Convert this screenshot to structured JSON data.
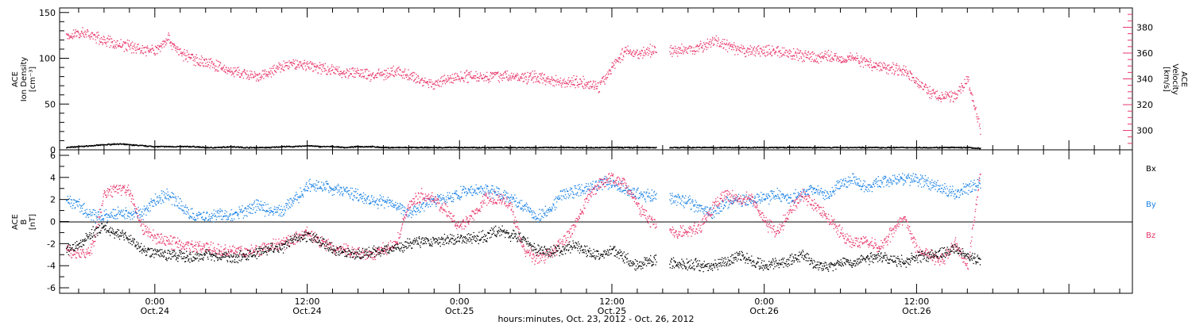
{
  "xlabel": "hours:minutes, Oct. 23, 2012 - Oct. 26, 2012",
  "x_ticks": [
    {
      "time": "0:00",
      "date": "Oct.24",
      "hour": 0
    },
    {
      "time": "12:00",
      "date": "Oct.24",
      "hour": 12
    },
    {
      "time": "0:00",
      "date": "Oct.25",
      "hour": 24
    },
    {
      "time": "12:00",
      "date": "Oct.25",
      "hour": 36
    },
    {
      "time": "0:00",
      "date": "Oct.26",
      "hour": 48
    },
    {
      "time": "12:00",
      "date": "Oct.26",
      "hour": 60
    }
  ],
  "colors": {
    "density": "#000000",
    "velocity": "#e8366a",
    "bx": "#000000",
    "by": "#1a82e6",
    "bz": "#e8366a"
  },
  "chart_data": [
    {
      "type": "scatter",
      "panel": "top",
      "x_range_hours": [
        -7.5,
        77
      ],
      "y_left": {
        "label_lines": [
          "ACE",
          "Ion Density",
          "[cm⁻³]"
        ],
        "ylim": [
          0,
          155
        ],
        "ticks": [
          0,
          50,
          100,
          150
        ]
      },
      "y_right": {
        "label_lines": [
          "ACE",
          "Velocity",
          "[km/s]"
        ],
        "ylim": [
          285,
          395
        ],
        "ticks": [
          300,
          320,
          340,
          360,
          380
        ]
      },
      "series": [
        {
          "name": "",
          "axis": "left",
          "x": [
            -7,
            -6,
            -5,
            -4,
            -3,
            -2,
            -1,
            0,
            1,
            2,
            3,
            4,
            5,
            6,
            7,
            8,
            9,
            10,
            11,
            12,
            13,
            14,
            15,
            16,
            17,
            18,
            19,
            20,
            21,
            22,
            23,
            24,
            25,
            26,
            27,
            28,
            29,
            30,
            31,
            32,
            33,
            34,
            35,
            36,
            37,
            38,
            39,
            40,
            41,
            42,
            43,
            44,
            45,
            46,
            47,
            48,
            49,
            50,
            51,
            52,
            53,
            54,
            55,
            56,
            57,
            58,
            59,
            60,
            61,
            62,
            63,
            64,
            65
          ],
          "y": [
            3,
            4,
            5,
            6,
            7,
            6,
            5,
            4,
            4,
            4,
            4,
            3,
            3,
            4,
            3,
            3,
            3,
            4,
            4,
            5,
            4,
            4,
            3,
            4,
            4,
            3,
            3,
            3,
            3,
            3,
            3,
            3,
            3,
            3,
            3,
            3,
            3,
            3,
            3,
            3,
            3,
            3,
            3,
            3,
            3,
            3,
            3,
            3,
            3,
            3,
            3,
            3,
            3,
            3,
            3,
            3,
            3,
            3,
            3,
            3,
            3,
            3,
            3,
            3,
            3,
            3,
            3,
            3,
            3,
            3,
            3,
            3,
            2
          ]
        },
        {
          "name": "",
          "axis": "right",
          "x": [
            -7,
            -6,
            -5,
            -4,
            -3,
            -2,
            -1,
            0,
            1,
            2,
            3,
            4,
            5,
            6,
            7,
            8,
            9,
            10,
            11,
            12,
            13,
            14,
            15,
            16,
            17,
            18,
            19,
            20,
            21,
            22,
            23,
            24,
            25,
            26,
            27,
            28,
            29,
            30,
            31,
            32,
            33,
            34,
            35,
            36,
            37,
            38,
            39,
            40,
            41,
            42,
            43,
            44,
            45,
            46,
            47,
            48,
            49,
            50,
            51,
            52,
            53,
            54,
            55,
            56,
            57,
            58,
            59,
            60,
            61,
            62,
            63,
            64,
            65
          ],
          "y": [
            373,
            376,
            374,
            370,
            367,
            366,
            363,
            362,
            372,
            360,
            356,
            353,
            350,
            346,
            344,
            341,
            345,
            350,
            352,
            351,
            349,
            347,
            345,
            345,
            343,
            344,
            346,
            343,
            339,
            336,
            340,
            342,
            343,
            342,
            343,
            342,
            341,
            342,
            340,
            338,
            338,
            337,
            334,
            350,
            362,
            360,
            362,
            363,
            362,
            363,
            365,
            370,
            366,
            362,
            362,
            362,
            362,
            360,
            358,
            357,
            358,
            356,
            357,
            353,
            350,
            349,
            347,
            338,
            330,
            326,
            327,
            340,
            300
          ]
        }
      ]
    },
    {
      "type": "scatter",
      "panel": "bottom",
      "x_range_hours": [
        -7.5,
        77
      ],
      "y_left": {
        "label_lines": [
          "ACE",
          "B",
          "[nT]"
        ],
        "ylim": [
          -6.5,
          6.5
        ],
        "ticks": [
          -6,
          -4,
          -2,
          0,
          2,
          4,
          6
        ]
      },
      "legend_placement": "right",
      "series": [
        {
          "name": "Bx",
          "x": [
            -7,
            -6,
            -5,
            -4,
            -3,
            -2,
            -1,
            0,
            1,
            2,
            3,
            4,
            5,
            6,
            7,
            8,
            9,
            10,
            11,
            12,
            13,
            14,
            15,
            16,
            17,
            18,
            19,
            20,
            21,
            22,
            23,
            24,
            25,
            26,
            27,
            28,
            29,
            30,
            31,
            32,
            33,
            34,
            35,
            36,
            37,
            38,
            39,
            40,
            41,
            42,
            43,
            44,
            45,
            46,
            47,
            48,
            49,
            50,
            51,
            52,
            53,
            54,
            55,
            56,
            57,
            58,
            59,
            60,
            61,
            62,
            63,
            64,
            65
          ],
          "y": [
            -2.5,
            -2.0,
            -1.0,
            -0.5,
            -1.0,
            -1.5,
            -2.5,
            -2.8,
            -3.0,
            -3.0,
            -3.2,
            -3.0,
            -3.1,
            -3.3,
            -3.0,
            -2.8,
            -2.5,
            -2.3,
            -1.5,
            -1.2,
            -1.8,
            -2.5,
            -2.8,
            -3.0,
            -2.7,
            -2.5,
            -2.3,
            -2.0,
            -1.8,
            -1.7,
            -1.6,
            -1.5,
            -1.5,
            -1.3,
            -0.8,
            -1.2,
            -1.5,
            -2.5,
            -2.7,
            -2.5,
            -2.2,
            -2.6,
            -3.0,
            -2.5,
            -3.2,
            -4.0,
            -3.4,
            -3.6,
            -3.7,
            -3.8,
            -3.9,
            -4.0,
            -3.6,
            -3.0,
            -3.5,
            -4.0,
            -3.8,
            -3.5,
            -3.0,
            -3.8,
            -4.1,
            -3.6,
            -3.8,
            -3.3,
            -3.2,
            -3.5,
            -3.6,
            -3.2,
            -3.0,
            -2.8,
            -2.5,
            -3.0,
            -3.5
          ]
        },
        {
          "name": "By",
          "x": [
            -7,
            -6,
            -5,
            -4,
            -3,
            -2,
            -1,
            0,
            1,
            2,
            3,
            4,
            5,
            6,
            7,
            8,
            9,
            10,
            11,
            12,
            13,
            14,
            15,
            16,
            17,
            18,
            19,
            20,
            21,
            22,
            23,
            24,
            25,
            26,
            27,
            28,
            29,
            30,
            31,
            32,
            33,
            34,
            35,
            36,
            37,
            38,
            39,
            40,
            41,
            42,
            43,
            44,
            45,
            46,
            47,
            48,
            49,
            50,
            51,
            52,
            53,
            54,
            55,
            56,
            57,
            58,
            59,
            60,
            61,
            62,
            63,
            64,
            65
          ],
          "y": [
            2.0,
            1.5,
            0.5,
            0.5,
            0.8,
            0.8,
            0.7,
            2.0,
            2.5,
            1.5,
            0.5,
            0.5,
            0.7,
            0.5,
            1.0,
            1.5,
            1.0,
            1.0,
            2.0,
            3.2,
            3.3,
            3.0,
            2.8,
            2.4,
            2.0,
            1.8,
            1.5,
            0.8,
            1.5,
            2.0,
            2.2,
            2.6,
            2.8,
            2.9,
            2.7,
            2.2,
            1.5,
            0.5,
            1.0,
            2.5,
            2.8,
            3.0,
            3.5,
            3.6,
            3.0,
            2.5,
            2.4,
            2.3,
            2.0,
            1.8,
            1.2,
            0.8,
            1.8,
            2.0,
            1.9,
            2.2,
            2.5,
            2.0,
            2.7,
            3.0,
            2.5,
            3.5,
            3.8,
            3.2,
            3.6,
            3.7,
            4.0,
            3.8,
            3.5,
            3.0,
            2.5,
            3.0,
            3.5
          ]
        },
        {
          "name": "Bz",
          "x": [
            -7,
            -6,
            -5,
            -4,
            -3,
            -2,
            -1,
            0,
            1,
            2,
            3,
            4,
            5,
            6,
            7,
            8,
            9,
            10,
            11,
            12,
            13,
            14,
            15,
            16,
            17,
            18,
            19,
            20,
            21,
            22,
            23,
            24,
            25,
            26,
            27,
            28,
            29,
            30,
            31,
            32,
            33,
            34,
            35,
            36,
            37,
            38,
            39,
            40,
            41,
            42,
            43,
            44,
            45,
            46,
            47,
            48,
            49,
            50,
            51,
            52,
            53,
            54,
            55,
            56,
            57,
            58,
            59,
            60,
            61,
            62,
            63,
            64,
            65
          ],
          "y": [
            -2.5,
            -3.0,
            -2.5,
            2.5,
            3.0,
            2.8,
            -0.5,
            -1.5,
            -1.8,
            -2.0,
            -2.2,
            -2.3,
            -2.5,
            -2.6,
            -2.7,
            -2.5,
            -2.3,
            -2.0,
            -1.5,
            -1.0,
            -1.8,
            -2.4,
            -2.6,
            -2.8,
            -3.0,
            -2.5,
            -2.0,
            1.5,
            2.5,
            2.0,
            1.0,
            -0.5,
            0.5,
            2.0,
            2.2,
            1.5,
            -2.5,
            -3.3,
            -3.0,
            -2.0,
            -0.5,
            2.0,
            3.5,
            4.0,
            3.5,
            1.5,
            0.0,
            -0.5,
            -1.0,
            -0.8,
            -0.5,
            1.5,
            2.5,
            2.0,
            2.2,
            0.0,
            -1.0,
            1.0,
            2.5,
            1.5,
            0.5,
            -1.0,
            -2.0,
            -1.5,
            -2.5,
            -1.0,
            0.5,
            -2.5,
            -3.0,
            -3.5,
            -2.0,
            -4.0,
            4.5
          ]
        }
      ]
    }
  ]
}
